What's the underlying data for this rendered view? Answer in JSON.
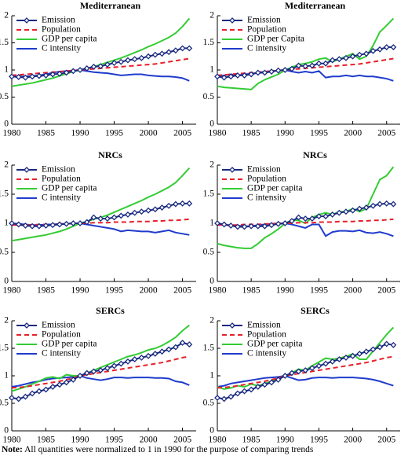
{
  "chart_data": [
    {
      "type": "line",
      "title": "Mediterranean",
      "legend": "upper left",
      "x": [
        1980,
        1981,
        1982,
        1983,
        1984,
        1985,
        1986,
        1987,
        1988,
        1989,
        1990,
        1991,
        1992,
        1993,
        1994,
        1995,
        1996,
        1997,
        1998,
        1999,
        2000,
        2001,
        2002,
        2003,
        2004,
        2005,
        2006
      ],
      "xlim": [
        1980,
        2007
      ],
      "xticks": [
        1980,
        1985,
        1990,
        1995,
        2000,
        2005
      ],
      "ylim": [
        0,
        2
      ],
      "yticks": [
        0,
        0.5,
        1,
        1.5,
        2
      ],
      "series": [
        {
          "name": "Emission",
          "color": "#1a2a80",
          "marker": "diamond",
          "values": [
            0.88,
            0.87,
            0.86,
            0.88,
            0.89,
            0.9,
            0.92,
            0.93,
            0.95,
            0.98,
            1.0,
            1.03,
            1.06,
            1.07,
            1.1,
            1.13,
            1.15,
            1.18,
            1.2,
            1.22,
            1.25,
            1.28,
            1.3,
            1.33,
            1.36,
            1.4,
            1.4
          ]
        },
        {
          "name": "Population",
          "color": "#e8202a",
          "dash": true,
          "values": [
            0.9,
            0.91,
            0.92,
            0.93,
            0.94,
            0.95,
            0.96,
            0.97,
            0.98,
            0.99,
            1.0,
            1.01,
            1.02,
            1.03,
            1.04,
            1.05,
            1.06,
            1.07,
            1.08,
            1.09,
            1.1,
            1.11,
            1.13,
            1.15,
            1.17,
            1.19,
            1.21
          ]
        },
        {
          "name": "GDP per capita",
          "color": "#33cc33",
          "values": [
            0.7,
            0.72,
            0.74,
            0.76,
            0.79,
            0.82,
            0.85,
            0.89,
            0.93,
            0.97,
            1.0,
            1.03,
            1.06,
            1.1,
            1.14,
            1.18,
            1.22,
            1.27,
            1.32,
            1.37,
            1.43,
            1.48,
            1.54,
            1.6,
            1.68,
            1.8,
            1.95
          ]
        },
        {
          "name": "C intensity",
          "color": "#1f3ccc",
          "values": [
            0.88,
            0.88,
            0.88,
            0.89,
            0.9,
            0.92,
            0.95,
            0.97,
            0.98,
            0.99,
            1.0,
            0.98,
            0.96,
            0.95,
            0.94,
            0.92,
            0.9,
            0.91,
            0.92,
            0.92,
            0.9,
            0.89,
            0.88,
            0.88,
            0.87,
            0.85,
            0.8
          ]
        }
      ]
    },
    {
      "type": "line",
      "title": "Mediterranean",
      "legend": "upper left",
      "x": [
        1980,
        1981,
        1982,
        1983,
        1984,
        1985,
        1986,
        1987,
        1988,
        1989,
        1990,
        1991,
        1992,
        1993,
        1994,
        1995,
        1996,
        1997,
        1998,
        1999,
        2000,
        2001,
        2002,
        2003,
        2004,
        2005,
        2006
      ],
      "xlim": [
        1980,
        2007
      ],
      "xticks": [
        1980,
        1985,
        1990,
        1995,
        2000,
        2005
      ],
      "ylim": [
        0,
        2
      ],
      "yticks": [
        0,
        0.5,
        1,
        1.5,
        2
      ],
      "series": [
        {
          "name": "Emission",
          "color": "#1a2a80",
          "marker": "diamond",
          "values": [
            0.88,
            0.86,
            0.88,
            0.9,
            0.9,
            0.92,
            0.95,
            0.95,
            0.97,
            0.99,
            1.0,
            1.02,
            1.08,
            1.07,
            1.08,
            1.12,
            1.12,
            1.18,
            1.2,
            1.22,
            1.25,
            1.28,
            1.3,
            1.35,
            1.38,
            1.42,
            1.42
          ]
        },
        {
          "name": "Population",
          "color": "#e8202a",
          "dash": true,
          "values": [
            0.9,
            0.91,
            0.92,
            0.93,
            0.94,
            0.95,
            0.96,
            0.97,
            0.98,
            0.99,
            1.0,
            1.01,
            1.02,
            1.03,
            1.04,
            1.05,
            1.06,
            1.07,
            1.08,
            1.09,
            1.1,
            1.11,
            1.13,
            1.15,
            1.17,
            1.19,
            1.21
          ]
        },
        {
          "name": "GDP per Capita",
          "color": "#33cc33",
          "values": [
            0.7,
            0.68,
            0.67,
            0.66,
            0.65,
            0.64,
            0.75,
            0.82,
            0.87,
            0.92,
            1.0,
            1.05,
            1.1,
            1.12,
            1.15,
            1.2,
            1.22,
            1.15,
            1.2,
            1.25,
            1.3,
            1.2,
            1.25,
            1.45,
            1.7,
            1.82,
            1.95
          ]
        },
        {
          "name": "C intensity",
          "color": "#1f3ccc",
          "values": [
            0.88,
            0.9,
            0.92,
            0.9,
            0.92,
            0.93,
            0.95,
            0.97,
            0.98,
            0.99,
            1.0,
            0.97,
            0.95,
            0.97,
            0.95,
            0.98,
            0.86,
            0.88,
            0.88,
            0.9,
            0.88,
            0.9,
            0.88,
            0.88,
            0.86,
            0.84,
            0.8
          ]
        }
      ]
    },
    {
      "type": "line",
      "title": "NRCs",
      "legend": "upper left",
      "x": [
        1980,
        1981,
        1982,
        1983,
        1984,
        1985,
        1986,
        1987,
        1988,
        1989,
        1990,
        1991,
        1992,
        1993,
        1994,
        1995,
        1996,
        1997,
        1998,
        1999,
        2000,
        2001,
        2002,
        2003,
        2004,
        2005,
        2006
      ],
      "xlim": [
        1980,
        2007
      ],
      "xticks": [
        1980,
        1985,
        1990,
        1995,
        2000,
        2005
      ],
      "ylim": [
        0,
        2
      ],
      "yticks": [
        0,
        0.5,
        1,
        1.5,
        2
      ],
      "series": [
        {
          "name": "Emission",
          "color": "#1a2a80",
          "marker": "diamond",
          "values": [
            1.0,
            0.98,
            0.96,
            0.95,
            0.95,
            0.96,
            0.97,
            0.98,
            0.99,
            1.0,
            1.0,
            1.02,
            1.1,
            1.08,
            1.08,
            1.1,
            1.13,
            1.15,
            1.18,
            1.2,
            1.22,
            1.24,
            1.27,
            1.3,
            1.33,
            1.34,
            1.34
          ]
        },
        {
          "name": "Population",
          "color": "#e8202a",
          "dash": true,
          "values": [
            0.97,
            0.97,
            0.97,
            0.97,
            0.98,
            0.98,
            0.98,
            0.99,
            0.99,
            1.0,
            1.0,
            1.0,
            1.01,
            1.01,
            1.01,
            1.02,
            1.02,
            1.02,
            1.03,
            1.03,
            1.03,
            1.04,
            1.04,
            1.05,
            1.05,
            1.06,
            1.07
          ]
        },
        {
          "name": "GDP per capita",
          "color": "#33cc33",
          "values": [
            0.7,
            0.72,
            0.74,
            0.76,
            0.78,
            0.8,
            0.83,
            0.86,
            0.9,
            0.95,
            1.0,
            1.03,
            1.07,
            1.1,
            1.14,
            1.19,
            1.24,
            1.29,
            1.34,
            1.39,
            1.45,
            1.5,
            1.56,
            1.62,
            1.7,
            1.82,
            1.95
          ]
        },
        {
          "name": "C intensity",
          "color": "#1f3ccc",
          "values": [
            1.0,
            0.99,
            0.98,
            0.97,
            0.97,
            0.98,
            0.98,
            0.99,
            0.99,
            1.0,
            1.0,
            0.98,
            0.96,
            0.94,
            0.92,
            0.9,
            0.86,
            0.88,
            0.87,
            0.86,
            0.86,
            0.84,
            0.86,
            0.88,
            0.84,
            0.82,
            0.8
          ]
        }
      ]
    },
    {
      "type": "line",
      "title": "NRCs",
      "legend": "upper left",
      "x": [
        1980,
        1981,
        1982,
        1983,
        1984,
        1985,
        1986,
        1987,
        1988,
        1989,
        1990,
        1991,
        1992,
        1993,
        1994,
        1995,
        1996,
        1997,
        1998,
        1999,
        2000,
        2001,
        2002,
        2003,
        2004,
        2005,
        2006
      ],
      "xlim": [
        1980,
        2007
      ],
      "xticks": [
        1980,
        1985,
        1990,
        1995,
        2000,
        2005
      ],
      "ylim": [
        0,
        2
      ],
      "yticks": [
        0,
        0.5,
        1,
        1.5,
        2
      ],
      "series": [
        {
          "name": "Emission",
          "color": "#1a2a80",
          "marker": "diamond",
          "values": [
            1.0,
            0.98,
            0.96,
            0.94,
            0.94,
            0.95,
            0.95,
            0.95,
            0.97,
            0.99,
            1.0,
            1.04,
            1.1,
            1.08,
            1.08,
            1.12,
            1.12,
            1.15,
            1.18,
            1.2,
            1.22,
            1.25,
            1.27,
            1.3,
            1.33,
            1.34,
            1.33
          ]
        },
        {
          "name": "Population",
          "color": "#e8202a",
          "dash": true,
          "values": [
            0.97,
            0.97,
            0.97,
            0.97,
            0.98,
            0.98,
            0.98,
            0.99,
            0.99,
            1.0,
            1.0,
            1.0,
            1.01,
            1.01,
            1.01,
            1.02,
            1.02,
            1.02,
            1.03,
            1.03,
            1.03,
            1.04,
            1.04,
            1.05,
            1.05,
            1.06,
            1.07
          ]
        },
        {
          "name": "GDP per capita",
          "color": "#33cc33",
          "values": [
            0.65,
            0.62,
            0.6,
            0.58,
            0.57,
            0.57,
            0.65,
            0.75,
            0.82,
            0.9,
            1.0,
            1.05,
            1.05,
            1.0,
            1.1,
            1.15,
            1.18,
            1.15,
            1.2,
            1.2,
            1.25,
            1.2,
            1.25,
            1.5,
            1.75,
            1.82,
            1.97
          ]
        },
        {
          "name": "C intensity",
          "color": "#1f3ccc",
          "values": [
            1.0,
            0.98,
            0.96,
            0.96,
            0.95,
            0.95,
            0.97,
            0.98,
            0.99,
            0.99,
            1.0,
            0.98,
            0.95,
            0.92,
            0.98,
            0.98,
            0.78,
            0.85,
            0.87,
            0.87,
            0.86,
            0.88,
            0.84,
            0.83,
            0.85,
            0.82,
            0.78
          ]
        }
      ]
    },
    {
      "type": "line",
      "title": "SERCs",
      "legend": "upper left",
      "x": [
        1980,
        1981,
        1982,
        1983,
        1984,
        1985,
        1986,
        1987,
        1988,
        1989,
        1990,
        1991,
        1992,
        1993,
        1994,
        1995,
        1996,
        1997,
        1998,
        1999,
        2000,
        2001,
        2002,
        2003,
        2004,
        2005,
        2006
      ],
      "xlim": [
        1980,
        2007
      ],
      "xticks": [
        1980,
        1985,
        1990,
        1995,
        2000,
        2005
      ],
      "ylim": [
        0,
        2
      ],
      "yticks": [
        0,
        0.5,
        1,
        1.5,
        2
      ],
      "series": [
        {
          "name": "Emission",
          "color": "#1a2a80",
          "marker": "diamond",
          "values": [
            0.6,
            0.58,
            0.62,
            0.68,
            0.72,
            0.75,
            0.8,
            0.84,
            0.88,
            0.93,
            1.0,
            1.05,
            1.08,
            1.1,
            1.14,
            1.18,
            1.22,
            1.26,
            1.3,
            1.33,
            1.36,
            1.4,
            1.44,
            1.48,
            1.52,
            1.6,
            1.57
          ]
        },
        {
          "name": "Population",
          "color": "#e8202a",
          "dash": true,
          "values": [
            0.78,
            0.79,
            0.8,
            0.82,
            0.84,
            0.86,
            0.88,
            0.9,
            0.93,
            0.96,
            1.0,
            1.02,
            1.04,
            1.06,
            1.08,
            1.1,
            1.12,
            1.14,
            1.16,
            1.18,
            1.2,
            1.22,
            1.24,
            1.27,
            1.3,
            1.33,
            1.35
          ]
        },
        {
          "name": "GDP per capita",
          "color": "#33cc33",
          "values": [
            0.72,
            0.76,
            0.8,
            0.85,
            0.9,
            0.96,
            0.98,
            0.95,
            1.02,
            1.0,
            1.0,
            1.05,
            1.1,
            1.15,
            1.2,
            1.25,
            1.3,
            1.35,
            1.38,
            1.42,
            1.47,
            1.5,
            1.55,
            1.62,
            1.7,
            1.82,
            1.92
          ]
        },
        {
          "name": "C intensity",
          "color": "#1f3ccc",
          "values": [
            0.8,
            0.82,
            0.85,
            0.88,
            0.9,
            0.93,
            0.95,
            0.96,
            0.97,
            0.98,
            1.0,
            0.96,
            0.94,
            0.92,
            0.94,
            0.97,
            0.97,
            0.96,
            0.97,
            0.97,
            0.97,
            0.96,
            0.96,
            0.95,
            0.9,
            0.88,
            0.83
          ]
        }
      ]
    },
    {
      "type": "line",
      "title": "SERCs",
      "legend": "upper left",
      "x": [
        1980,
        1981,
        1982,
        1983,
        1984,
        1985,
        1986,
        1987,
        1988,
        1989,
        1990,
        1991,
        1992,
        1993,
        1994,
        1995,
        1996,
        1997,
        1998,
        1999,
        2000,
        2001,
        2002,
        2003,
        2004,
        2005,
        2006
      ],
      "xlim": [
        1980,
        2007
      ],
      "xticks": [
        1980,
        1985,
        1990,
        1995,
        2000,
        2005
      ],
      "ylim": [
        0,
        2
      ],
      "yticks": [
        0,
        0.5,
        1,
        1.5,
        2
      ],
      "series": [
        {
          "name": "Emission",
          "color": "#1a2a80",
          "marker": "diamond",
          "values": [
            0.6,
            0.58,
            0.62,
            0.68,
            0.72,
            0.75,
            0.8,
            0.84,
            0.88,
            0.93,
            1.0,
            1.05,
            1.08,
            1.1,
            1.14,
            1.18,
            1.22,
            1.26,
            1.3,
            1.33,
            1.36,
            1.4,
            1.44,
            1.48,
            1.52,
            1.58,
            1.56
          ]
        },
        {
          "name": "Population",
          "color": "#e8202a",
          "dash": true,
          "values": [
            0.78,
            0.79,
            0.8,
            0.82,
            0.84,
            0.86,
            0.88,
            0.9,
            0.93,
            0.96,
            1.0,
            1.02,
            1.04,
            1.06,
            1.08,
            1.1,
            1.12,
            1.14,
            1.16,
            1.18,
            1.2,
            1.22,
            1.24,
            1.27,
            1.3,
            1.33,
            1.35
          ]
        },
        {
          "name": "GDP per capita",
          "color": "#33cc33",
          "values": [
            0.8,
            0.76,
            0.78,
            0.82,
            0.8,
            0.85,
            0.82,
            0.86,
            0.9,
            0.95,
            1.0,
            1.05,
            1.12,
            1.1,
            1.18,
            1.25,
            1.32,
            1.3,
            1.32,
            1.35,
            1.4,
            1.3,
            1.3,
            1.45,
            1.6,
            1.75,
            1.88
          ]
        },
        {
          "name": "C intensity",
          "color": "#1f3ccc",
          "values": [
            0.8,
            0.82,
            0.86,
            0.88,
            0.9,
            0.92,
            0.94,
            0.96,
            0.97,
            0.98,
            1.0,
            0.96,
            0.92,
            0.93,
            0.96,
            0.97,
            0.97,
            0.96,
            0.97,
            0.97,
            0.97,
            0.96,
            0.95,
            0.93,
            0.9,
            0.86,
            0.82
          ]
        }
      ]
    }
  ],
  "note": {
    "label": "Note:",
    "text": "All quantities were normalized to 1 in 1990 for the purpose of comparing trends"
  }
}
